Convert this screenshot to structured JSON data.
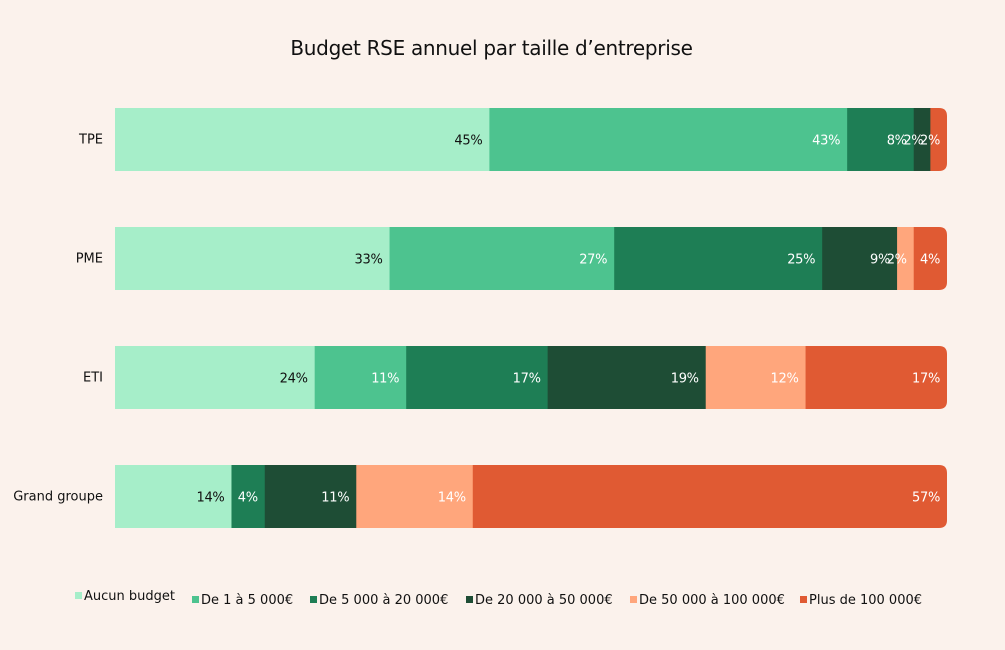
{
  "chart_data": {
    "type": "bar",
    "orientation": "horizontal",
    "stacked": true,
    "title": "Budget RSE annuel par taille d’entreprise",
    "xlabel": "",
    "ylabel": "",
    "xlim": [
      0,
      100
    ],
    "grid": false,
    "legend_position": "bottom",
    "categories": [
      "TPE",
      "PME",
      "ETI",
      "Grand groupe"
    ],
    "series": [
      {
        "name": "Aucun budget",
        "color": "#a6eec9",
        "label_color": "#111111",
        "values": [
          45,
          33,
          24,
          14
        ]
      },
      {
        "name": "De 1 à 5 000€",
        "color": "#4dc38f",
        "label_color": "#ffffff",
        "values": [
          43,
          27,
          11,
          0
        ]
      },
      {
        "name": "De 5 000 à 20 000€",
        "color": "#1e7e55",
        "label_color": "#ffffff",
        "values": [
          8,
          25,
          17,
          4
        ]
      },
      {
        "name": "De 20 000 à 50 000€",
        "color": "#1e4d35",
        "label_color": "#ffffff",
        "values": [
          2,
          9,
          19,
          11
        ]
      },
      {
        "name": "De 50 000 à 100 000€",
        "color": "#ffa67c",
        "label_color": "#ffffff",
        "values": [
          0,
          2,
          12,
          14
        ]
      },
      {
        "name": "Plus de 100 000€",
        "color": "#e05a33",
        "label_color": "#ffffff",
        "values": [
          2,
          4,
          17,
          57
        ]
      }
    ]
  }
}
